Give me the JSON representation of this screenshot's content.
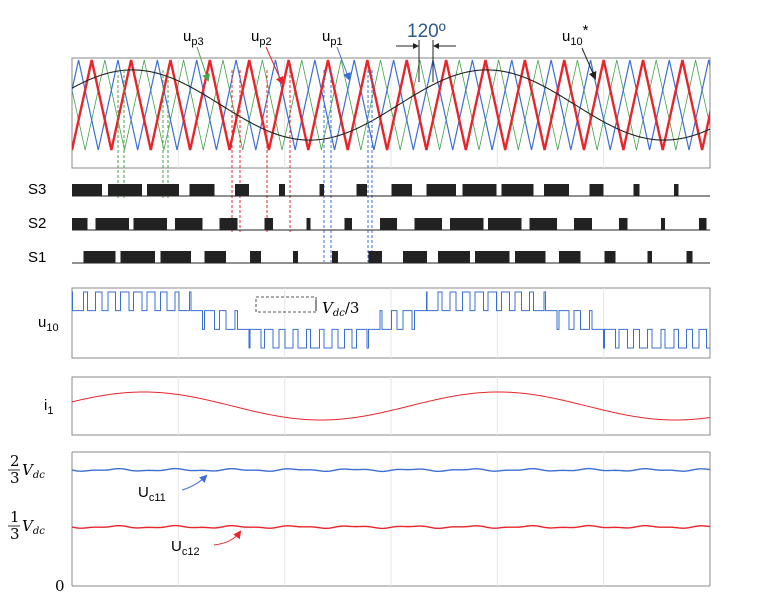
{
  "colors": {
    "red": "#e8252a",
    "blue": "#3c6fd4",
    "green": "#44a24a",
    "black": "#222222",
    "grid": "#e6e6e6",
    "annotation": "#2f5b8a",
    "axis": "#888888"
  },
  "carriers": {
    "up1": {
      "label_main": "u",
      "label_sub": "p1",
      "color": "#3c6fd4"
    },
    "up2": {
      "label_main": "u",
      "label_sub": "p2",
      "color": "#e8252a"
    },
    "up3": {
      "label_main": "u",
      "label_sub": "p3",
      "color": "#44a24a"
    }
  },
  "reference": {
    "label_main": "u",
    "label_sub": "10",
    "label_sup": "*"
  },
  "phase_shift_label": "120º",
  "switch_labels": {
    "s3": "S3",
    "s2": "S2",
    "s1": "S1"
  },
  "u10_panel": {
    "label_main": "u",
    "label_sub": "10",
    "step_label_var": "V",
    "step_label_sub": "dc",
    "step_label_den": "/3"
  },
  "i1_panel": {
    "label_main": "i",
    "label_sub": "1"
  },
  "cap_panel": {
    "tick_two_thirds_num": "2",
    "tick_one_third_num": "1",
    "tick_den": "3",
    "tick_var": "V",
    "tick_var_sub": "dc",
    "tick_zero": "0",
    "uc11_main": "U",
    "uc11_sub": "c11",
    "uc12_main": "U",
    "uc12_sub": "c12"
  },
  "chart_data": {
    "type": "line",
    "carrier_periods_per_reference_period": 9,
    "reference_periods_shown": 1.8,
    "carrier_phase_shift_deg": 120,
    "u10_step_size": "Vdc/3",
    "capacitor_voltages": {
      "Uc11": "2/3 Vdc",
      "Uc12": "1/3 Vdc"
    },
    "cap_yticks": [
      "0",
      "1/3 Vdc",
      "2/3 Vdc"
    ]
  }
}
